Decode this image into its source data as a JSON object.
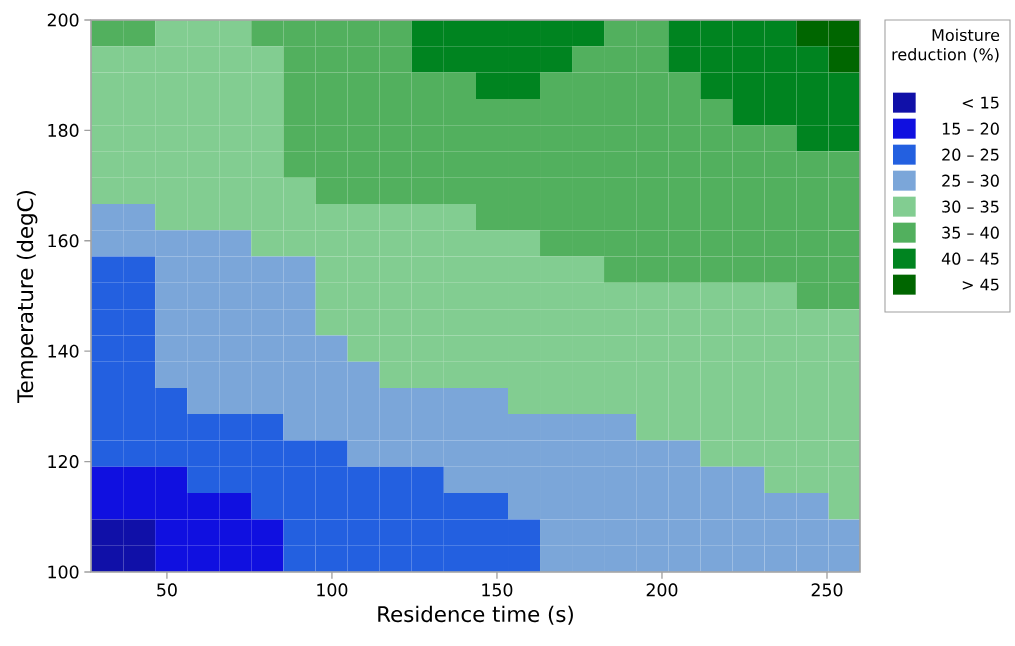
{
  "chart_data": {
    "type": "heatmap",
    "xlabel": "Residence time (s)",
    "ylabel": "Temperature (degC)",
    "clabel": "Moisture reduction (%)",
    "xlim": [
      27,
      260
    ],
    "ylim": [
      100,
      200
    ],
    "xticks": [
      50,
      100,
      150,
      200,
      250
    ],
    "yticks": [
      100,
      120,
      140,
      160,
      180,
      200
    ],
    "x": [
      31.9,
      41.6,
      51.3,
      61.0,
      70.7,
      80.4,
      90.2,
      99.9,
      109.6,
      119.3,
      129.0,
      138.8,
      148.5,
      158.2,
      167.9,
      177.6,
      187.3,
      197.1,
      206.8,
      216.5,
      226.2,
      235.9,
      245.6,
      255.4
    ],
    "y": [
      197.6,
      192.9,
      188.1,
      183.3,
      178.6,
      173.8,
      169.0,
      164.3,
      159.5,
      154.8,
      150.0,
      145.2,
      140.5,
      135.7,
      131.0,
      126.2,
      121.4,
      116.7,
      111.9,
      107.1,
      102.4
    ],
    "clim": [
      10,
      50
    ],
    "cticks": [
      {
        "value": 12,
        "label": "< 15"
      },
      {
        "value": 17,
        "label": "15 – 20"
      },
      {
        "value": 22,
        "label": "20 – 25"
      },
      {
        "value": 27,
        "label": "25 – 30"
      },
      {
        "value": 32,
        "label": "30 – 35"
      },
      {
        "value": 37,
        "label": "35 – 40"
      },
      {
        "value": 42,
        "label": "40 – 45"
      },
      {
        "value": 47,
        "label": "> 45"
      }
    ],
    "colors": [
      "#1010a8",
      "#1010e0",
      "#2360e0",
      "#7ba6d9",
      "#82cd91",
      "#52b05e",
      "#008420",
      "#006600"
    ],
    "cells": [
      [
        37,
        37,
        32,
        32,
        32,
        37,
        37,
        37,
        37,
        37,
        42,
        42,
        42,
        42,
        42,
        42,
        37,
        37,
        42,
        42,
        42,
        42,
        47,
        47
      ],
      [
        32,
        32,
        32,
        32,
        32,
        32,
        37,
        37,
        37,
        37,
        42,
        42,
        42,
        42,
        42,
        37,
        37,
        37,
        42,
        42,
        42,
        42,
        42,
        47
      ],
      [
        32,
        32,
        32,
        32,
        32,
        32,
        37,
        37,
        37,
        37,
        37,
        37,
        42,
        42,
        37,
        37,
        37,
        37,
        37,
        42,
        42,
        42,
        42,
        42
      ],
      [
        32,
        32,
        32,
        32,
        32,
        32,
        37,
        37,
        37,
        37,
        37,
        37,
        37,
        37,
        37,
        37,
        37,
        37,
        37,
        37,
        42,
        42,
        42,
        42
      ],
      [
        32,
        32,
        32,
        32,
        32,
        32,
        37,
        37,
        37,
        37,
        37,
        37,
        37,
        37,
        37,
        37,
        37,
        37,
        37,
        37,
        37,
        37,
        42,
        42
      ],
      [
        32,
        32,
        32,
        32,
        32,
        32,
        37,
        37,
        37,
        37,
        37,
        37,
        37,
        37,
        37,
        37,
        37,
        37,
        37,
        37,
        37,
        37,
        37,
        37
      ],
      [
        32,
        32,
        32,
        32,
        32,
        32,
        32,
        37,
        37,
        37,
        37,
        37,
        37,
        37,
        37,
        37,
        37,
        37,
        37,
        37,
        37,
        37,
        37,
        37
      ],
      [
        27,
        27,
        32,
        32,
        32,
        32,
        32,
        32,
        32,
        32,
        32,
        32,
        37,
        37,
        37,
        37,
        37,
        37,
        37,
        37,
        37,
        37,
        37,
        37
      ],
      [
        27,
        27,
        27,
        27,
        27,
        32,
        32,
        32,
        32,
        32,
        32,
        32,
        32,
        32,
        37,
        37,
        37,
        37,
        37,
        37,
        37,
        37,
        37,
        37
      ],
      [
        22,
        22,
        27,
        27,
        27,
        27,
        27,
        32,
        32,
        32,
        32,
        32,
        32,
        32,
        32,
        32,
        37,
        37,
        37,
        37,
        37,
        37,
        37,
        37
      ],
      [
        22,
        22,
        27,
        27,
        27,
        27,
        27,
        32,
        32,
        32,
        32,
        32,
        32,
        32,
        32,
        32,
        32,
        32,
        32,
        32,
        32,
        32,
        37,
        37
      ],
      [
        22,
        22,
        27,
        27,
        27,
        27,
        27,
        32,
        32,
        32,
        32,
        32,
        32,
        32,
        32,
        32,
        32,
        32,
        32,
        32,
        32,
        32,
        32,
        32
      ],
      [
        22,
        22,
        27,
        27,
        27,
        27,
        27,
        27,
        32,
        32,
        32,
        32,
        32,
        32,
        32,
        32,
        32,
        32,
        32,
        32,
        32,
        32,
        32,
        32
      ],
      [
        22,
        22,
        27,
        27,
        27,
        27,
        27,
        27,
        27,
        32,
        32,
        32,
        32,
        32,
        32,
        32,
        32,
        32,
        32,
        32,
        32,
        32,
        32,
        32
      ],
      [
        22,
        22,
        22,
        27,
        27,
        27,
        27,
        27,
        27,
        27,
        27,
        27,
        27,
        32,
        32,
        32,
        32,
        32,
        32,
        32,
        32,
        32,
        32,
        32
      ],
      [
        22,
        22,
        22,
        22,
        22,
        22,
        27,
        27,
        27,
        27,
        27,
        27,
        27,
        27,
        27,
        27,
        27,
        32,
        32,
        32,
        32,
        32,
        32,
        32
      ],
      [
        22,
        22,
        22,
        22,
        22,
        22,
        22,
        22,
        27,
        27,
        27,
        27,
        27,
        27,
        27,
        27,
        27,
        27,
        27,
        32,
        32,
        32,
        32,
        32
      ],
      [
        17,
        17,
        17,
        22,
        22,
        22,
        22,
        22,
        22,
        22,
        22,
        27,
        27,
        27,
        27,
        27,
        27,
        27,
        27,
        27,
        27,
        32,
        32,
        32
      ],
      [
        17,
        17,
        17,
        17,
        17,
        22,
        22,
        22,
        22,
        22,
        22,
        22,
        22,
        27,
        27,
        27,
        27,
        27,
        27,
        27,
        27,
        27,
        27,
        32
      ],
      [
        12,
        12,
        17,
        17,
        17,
        17,
        22,
        22,
        22,
        22,
        22,
        22,
        22,
        22,
        27,
        27,
        27,
        27,
        27,
        27,
        27,
        27,
        27,
        27
      ],
      [
        12,
        12,
        17,
        17,
        17,
        17,
        22,
        22,
        22,
        22,
        22,
        22,
        22,
        22,
        27,
        27,
        27,
        27,
        27,
        27,
        27,
        27,
        27,
        27
      ]
    ]
  }
}
